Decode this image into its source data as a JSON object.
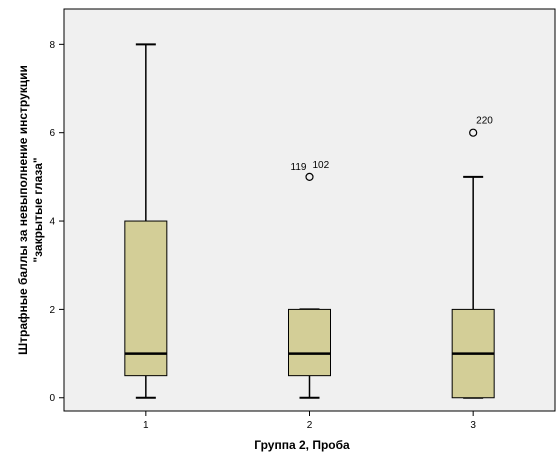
{
  "chart_data": {
    "type": "boxplot",
    "title": "",
    "xlabel": "Группа 2, Проба",
    "ylabel_lines": [
      "Штрафные баллы за невыполнение инструкции",
      "\"закрытые глаза\""
    ],
    "ylim": [
      -0.3,
      8.8
    ],
    "yticks": [
      0,
      2,
      4,
      6,
      8
    ],
    "categories": [
      "1",
      "2",
      "3"
    ],
    "boxes": [
      {
        "category": "1",
        "whisker_low": 0,
        "q1": 0.5,
        "median": 1,
        "q3": 4,
        "whisker_high": 8,
        "outliers": []
      },
      {
        "category": "2",
        "whisker_low": 0,
        "q1": 0.5,
        "median": 1,
        "q3": 2,
        "whisker_high": 2,
        "outliers": [
          {
            "value": 5,
            "labels": [
              "119",
              "102"
            ]
          }
        ]
      },
      {
        "category": "3",
        "whisker_low": 0,
        "q1": 0,
        "median": 1,
        "q3": 2,
        "whisker_high": 5,
        "outliers": [
          {
            "value": 6,
            "labels": [
              "220"
            ]
          }
        ]
      }
    ],
    "colors": {
      "plot_background": "#f0f0f0",
      "box_fill": "#d3ce97",
      "line": "#000000"
    },
    "grid": false
  }
}
